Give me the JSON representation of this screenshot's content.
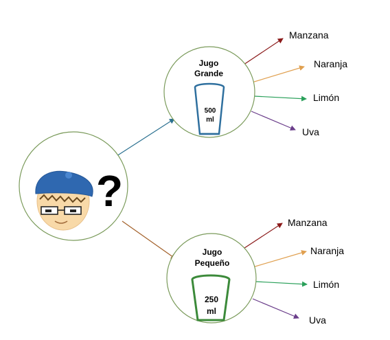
{
  "root": {
    "symbol": "?"
  },
  "branches": [
    {
      "title_line1": "Jugo",
      "title_line2": "Grande",
      "volume_line1": "500",
      "volume_line2": "ml",
      "cup_color": "#2e6f9e",
      "fruits": [
        "Manzana",
        "Naranja",
        "Limón",
        "Uva"
      ]
    },
    {
      "title_line1": "Jugo",
      "title_line2": "Pequeño",
      "volume_line1": "250",
      "volume_line2": "ml",
      "cup_color": "#3c8a3a",
      "fruits": [
        "Manzana",
        "Naranja",
        "Limón",
        "Uva"
      ]
    }
  ],
  "colors": {
    "node_border": "#7a9a5a",
    "edge_top": "#2a7090",
    "edge_bottom": "#a3612a",
    "fruit_manzana": "#8b1a1a",
    "fruit_naranja": "#e0a050",
    "fruit_limon": "#2aa05a",
    "fruit_uva": "#6a3d8a",
    "beret": "#2f68b0",
    "face": "#f8d9a8"
  }
}
